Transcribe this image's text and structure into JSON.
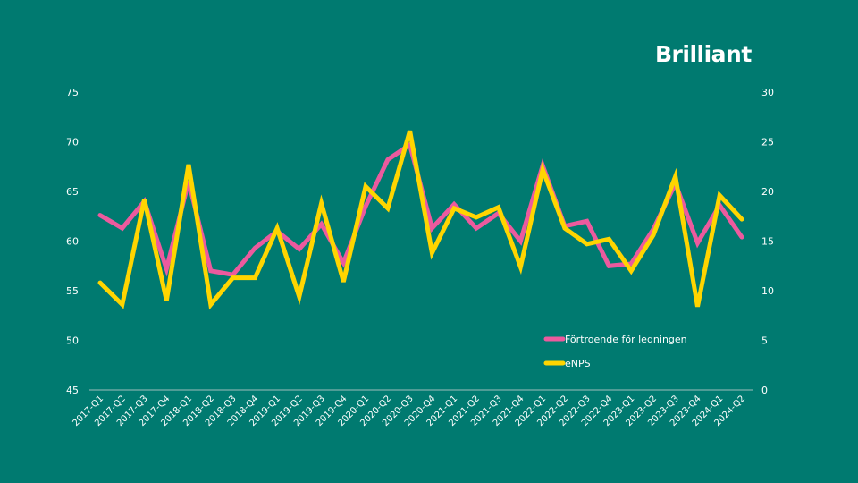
{
  "brand": "Brilliant",
  "colors": {
    "background": "#007A70",
    "series1": "#EC5A9E",
    "series2": "#FFD500",
    "axis": "#9fbfbb"
  },
  "chart_data": {
    "type": "line",
    "title": "",
    "categories": [
      "2017-Q1",
      "2017-Q2",
      "2017-Q3",
      "2017-Q4",
      "2018-Q1",
      "2018-Q2",
      "2018-Q3",
      "2018-Q4",
      "2019-Q1",
      "2019-Q2",
      "2019-Q3",
      "2019-Q4",
      "2020-Q1",
      "2020-Q2",
      "2020-Q3",
      "2020-Q4",
      "2021-Q1",
      "2021-Q2",
      "2021-Q3",
      "2021-Q4",
      "2022-Q1",
      "2022-Q2",
      "2022-Q3",
      "2022-Q4",
      "2023-Q1",
      "2023-Q2",
      "2023-Q3",
      "2023-Q4",
      "2024-Q1",
      "2024-Q2"
    ],
    "left_axis": {
      "ylim": [
        45,
        75
      ],
      "ticks": [
        "45",
        "50",
        "55",
        "60",
        "65",
        "70",
        "75"
      ]
    },
    "right_axis": {
      "ylim": [
        0,
        30
      ],
      "ticks": [
        "0",
        "5",
        "10",
        "15",
        "20",
        "25",
        "30"
      ]
    },
    "series": [
      {
        "name": "Förtroende för ledningen",
        "axis": "left",
        "values": [
          62.6,
          61.3,
          64,
          57.2,
          66,
          57,
          56.6,
          59.3,
          61,
          59.2,
          61.7,
          57.8,
          63.5,
          68.2,
          69.7,
          61.3,
          63.7,
          61.3,
          62.8,
          60,
          67.6,
          61.5,
          62,
          57.5,
          57.7,
          61.2,
          65.8,
          59.8,
          63.6,
          60.4
        ]
      },
      {
        "name": "eNPS",
        "axis": "right",
        "values": [
          10.8,
          8.6,
          19.2,
          9,
          22.7,
          8.6,
          11.3,
          11.3,
          16.3,
          9.4,
          18.8,
          10.9,
          20.5,
          18.3,
          26.1,
          13.8,
          18.3,
          17.4,
          18.4,
          12.4,
          22.2,
          16.3,
          14.7,
          15.2,
          12,
          15.6,
          21.5,
          8.4,
          19.6,
          17.2
        ]
      }
    ],
    "legend": "bottom-right inside",
    "grid": false
  }
}
